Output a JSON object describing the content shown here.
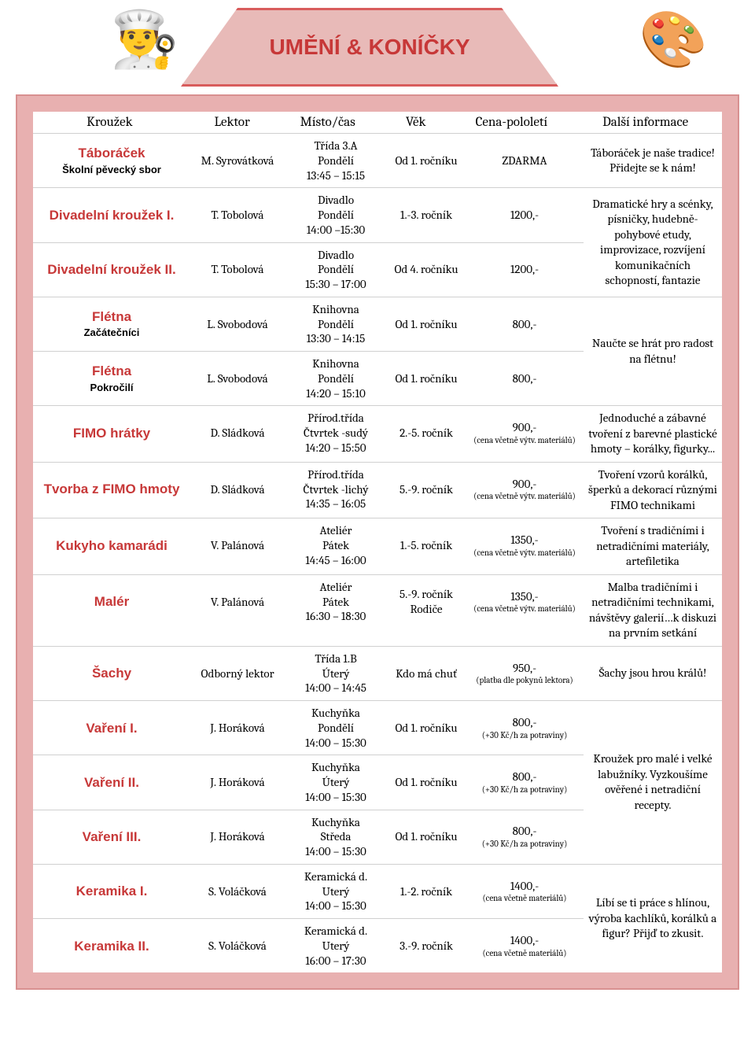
{
  "title": "UMĚNÍ & KONÍČKY",
  "headers": {
    "name": "Kroužek",
    "lektor": "Lektor",
    "misto": "Místo/čas",
    "vek": "Věk",
    "cena": "Cena-pololetí",
    "info": "Další informace"
  },
  "groups": [
    {
      "info": "Táboráček je naše tradice! Přidejte se k nám!",
      "rows": [
        {
          "name": "Táboráček",
          "sub": "Školní pěvecký sbor",
          "lektor": "M. Syrovátková",
          "m1": "Třída 3.A",
          "m2": "Pondělí",
          "m3": "13:45 – 15:15",
          "vek": "Od 1. ročníku",
          "cena": "ZDARMA",
          "csub": ""
        }
      ]
    },
    {
      "info": "Dramatické hry a scénky, písničky, hudebně-pohybové etudy, improvizace, rozvíjení komunikačních schopností, fantazie",
      "rows": [
        {
          "name": "Divadelní kroužek I.",
          "sub": "",
          "lektor": "T. Tobolová",
          "m1": "Divadlo",
          "m2": "Pondělí",
          "m3": "14:00 –15:30",
          "vek": "1.-3. ročník",
          "cena": "1200,-",
          "csub": ""
        },
        {
          "name": "Divadelní kroužek II.",
          "sub": "",
          "lektor": "T. Tobolová",
          "m1": "Divadlo",
          "m2": "Pondělí",
          "m3": "15:30 – 17:00",
          "vek": "Od 4. ročníku",
          "cena": "1200,-",
          "csub": ""
        }
      ]
    },
    {
      "info": "Naučte se hrát pro radost na flétnu!",
      "rows": [
        {
          "name": "Flétna",
          "sub": "Začátečníci",
          "lektor": "L.  Svobodová",
          "m1": "Knihovna",
          "m2": "Pondělí",
          "m3": "13:30 – 14:15",
          "vek": "Od 1. ročníku",
          "cena": "800,-",
          "csub": ""
        },
        {
          "name": "Flétna",
          "sub": "Pokročilí",
          "lektor": "L.  Svobodová",
          "m1": "Knihovna",
          "m2": "Pondělí",
          "m3": "14:20 – 15:10",
          "vek": "Od 1. ročníku",
          "cena": "800,-",
          "csub": ""
        }
      ]
    },
    {
      "info": "Jednoduché a zábavné tvoření z barevné plastické hmoty – korálky, figurky...",
      "rows": [
        {
          "name": "FIMO hrátky",
          "sub": "",
          "lektor": "D. Sládková",
          "m1": "Přírod.třída",
          "m2": "Čtvrtek -sudý",
          "m3": "14:20 – 15:50",
          "vek": "2.-5. ročník",
          "cena": "900,-",
          "csub": "(cena včetně výtv. materiálů)"
        }
      ]
    },
    {
      "info": "Tvoření vzorů korálků, šperků a dekorací různými FIMO technikami",
      "rows": [
        {
          "name": "Tvorba z FIMO hmoty",
          "sub": "",
          "lektor": "D. Sládková",
          "m1": "Přírod.třída",
          "m2": "Čtvrtek -lichý",
          "m3": "14:35 – 16:05",
          "vek": "5.-9. ročník",
          "cena": "900,-",
          "csub": "(cena včetně výtv. materiálů)"
        }
      ]
    },
    {
      "info": "Tvoření s tradičními i netradičními materiály, artefiletika",
      "rows": [
        {
          "name": "Kukyho kamarádi",
          "sub": "",
          "lektor": "V. Palánová",
          "m1": "Ateliér",
          "m2": "Pátek",
          "m3": "14:45 – 16:00",
          "vek": "1.-5. ročník",
          "cena": "1350,-",
          "csub": "(cena včetně výtv. materiálů)"
        }
      ]
    },
    {
      "info": "Malba tradičními i netradičními technikami, návštěvy galerií…k diskuzi na prvním setkání",
      "rows": [
        {
          "name": "Malér",
          "sub": "",
          "lektor": "V. Palánová",
          "m1": "Ateliér",
          "m2": "Pátek",
          "m3": "16:30 – 18:30",
          "vek": "5.-9. ročník Rodiče",
          "cena": "1350,-",
          "csub": "(cena včetně výtv. materiálů)"
        }
      ]
    },
    {
      "info": "Šachy jsou hrou králů!",
      "rows": [
        {
          "name": "Šachy",
          "sub": "",
          "lektor": "Odborný lektor",
          "m1": "Třída 1.B",
          "m2": "Úterý",
          "m3": "14:00 – 14:45",
          "vek": "Kdo má chuť",
          "cena": "950,-",
          "csub": "(platba dle pokynů lektora)",
          "star": true
        }
      ]
    },
    {
      "info": "Kroužek pro malé i velké labužníky. Vyzkoušíme ověřené i netradiční recepty.",
      "rows": [
        {
          "name": "Vaření I.",
          "sub": "",
          "lektor": "J. Horáková",
          "m1": "Kuchyňka",
          "m2": "Pondělí",
          "m3": "14:00 – 15:30",
          "vek": "Od 1. ročníku",
          "cena": "800,-",
          "csub": "(+30 Kč/h za potraviny)"
        },
        {
          "name": "Vaření II.",
          "sub": "",
          "lektor": "J. Horáková",
          "m1": "Kuchyňka",
          "m2": "Úterý",
          "m3": "14:00 – 15:30",
          "vek": "Od 1. ročníku",
          "cena": "800,-",
          "csub": "(+30 Kč/h za potraviny)"
        },
        {
          "name": "Vaření III.",
          "sub": "",
          "lektor": "J. Horáková",
          "m1": "Kuchyňka",
          "m2": "Středa",
          "m3": "14:00 – 15:30",
          "vek": "Od 1. ročníku",
          "cena": "800,-",
          "csub": "(+30 Kč/h za potraviny)"
        }
      ]
    },
    {
      "info": "Líbí se ti práce s hlínou, výroba kachlíků, korálků a figur? Přijď to zkusit.",
      "rows": [
        {
          "name": "Keramika  I.",
          "sub": "",
          "lektor": "S. Voláčková",
          "m1": "Keramická d.",
          "m2": "Uterý",
          "m3": "14:00 – 15:30",
          "vek": "1.-2. ročník",
          "cena": "1400,-",
          "csub": "(cena včetně materiálů)"
        },
        {
          "name": "Keramika  II.",
          "sub": "",
          "lektor": "S. Voláčková",
          "m1": "Keramická d.",
          "m2": "Uterý",
          "m3": "16:00 – 17:30",
          "vek": "3.-9. ročník",
          "cena": "1400,-",
          "csub": "(cena včetně materiálů)"
        }
      ]
    }
  ]
}
